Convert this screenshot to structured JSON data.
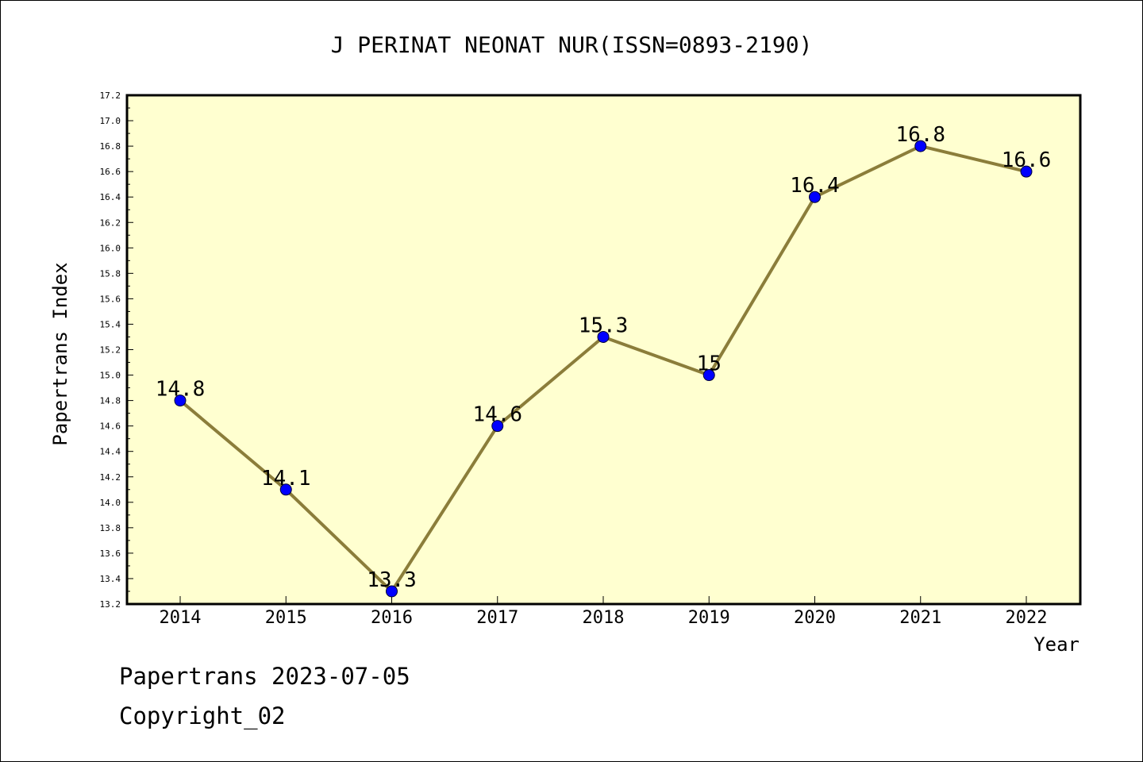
{
  "chart_data": {
    "type": "line",
    "title": "J PERINAT NEONAT NUR(ISSN=0893-2190)",
    "xlabel": "Year",
    "ylabel": "Papertrans Index",
    "categories": [
      "2014",
      "2015",
      "2016",
      "2017",
      "2018",
      "2019",
      "2020",
      "2021",
      "2022"
    ],
    "series": [
      {
        "values": [
          14.8,
          14.1,
          13.3,
          14.6,
          15.3,
          15.0,
          16.4,
          16.8,
          16.6
        ],
        "labels": [
          "14.8",
          "14.1",
          "13.3",
          "14.6",
          "15.3",
          "15",
          "16.4",
          "16.8",
          "16.6"
        ]
      }
    ],
    "ylim": [
      13.2,
      17.2
    ],
    "ytick_step": 0.2,
    "grid": false,
    "line_color": "#8B7D3A",
    "marker_color": "#0000FF",
    "plot_background": "#FFFFD0"
  },
  "footer": {
    "date_line": "Papertrans 2023-07-05",
    "copyright_line": "Copyright_02"
  }
}
